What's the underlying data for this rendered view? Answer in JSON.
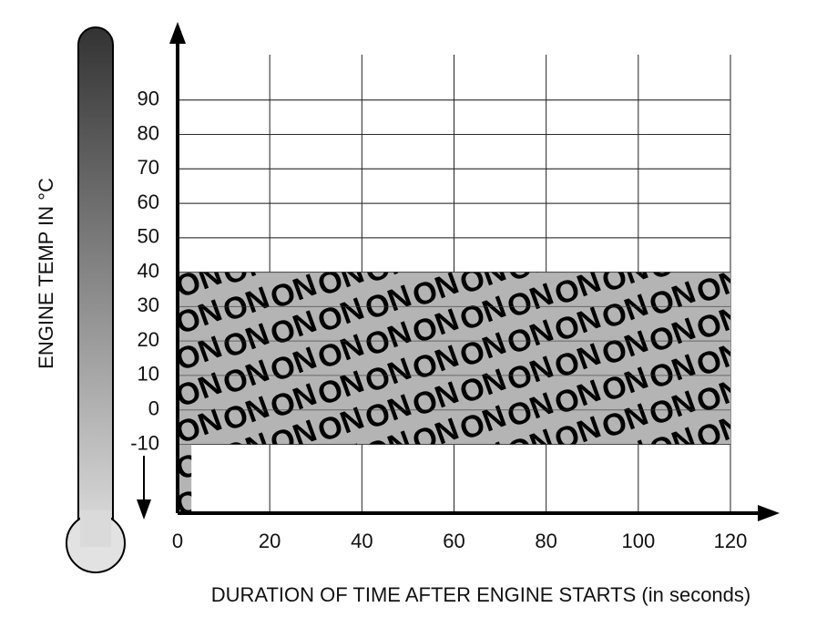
{
  "chart_data": {
    "type": "range",
    "x_label": "DURATION OF TIME AFTER ENGINE STARTS (in seconds)",
    "y_label": "ENGINE TEMP IN °C",
    "region_label": "ON",
    "regions": [
      {
        "x": [
          0,
          120
        ],
        "y": [
          -10,
          40
        ]
      },
      {
        "x": [
          0,
          3
        ],
        "y": [
          -30,
          -10
        ]
      }
    ],
    "color": "#b4b4b4",
    "xlim": [
      0,
      120
    ],
    "xticks": [
      0,
      20,
      40,
      60,
      80,
      100,
      120
    ],
    "ylim": [
      -30,
      100
    ],
    "yticks": [
      -10,
      0,
      10,
      20,
      30,
      40,
      50,
      60,
      70,
      80,
      90
    ],
    "grid": true
  }
}
